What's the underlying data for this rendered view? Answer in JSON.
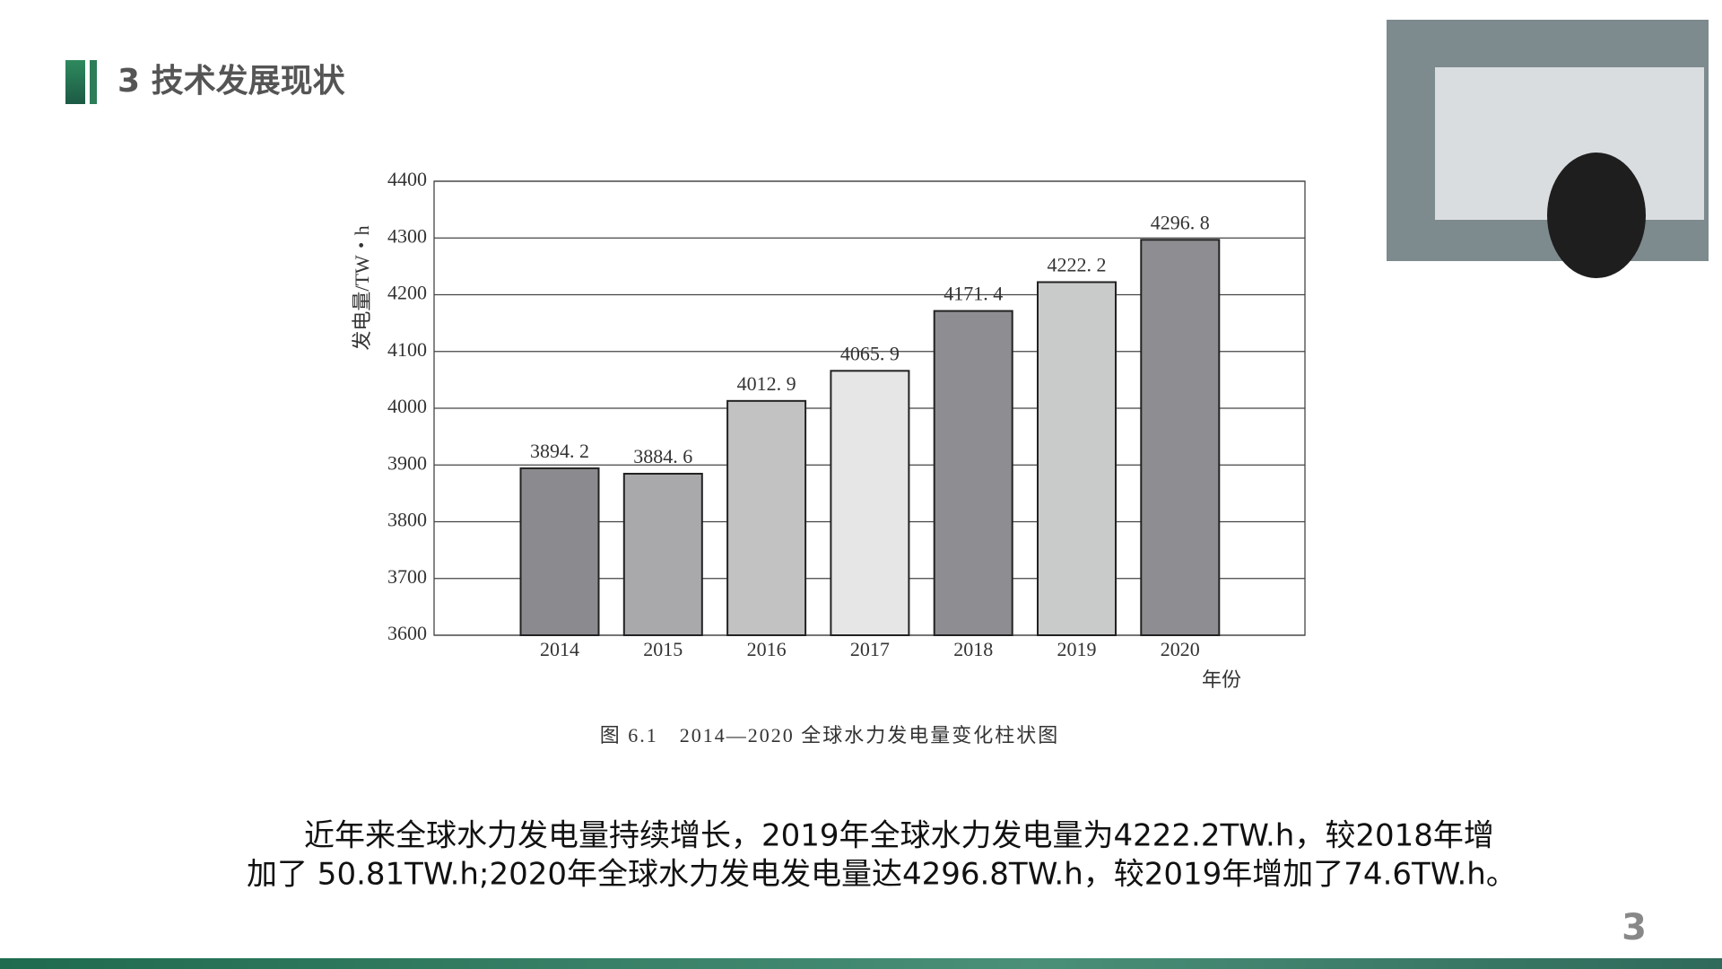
{
  "header": {
    "number_title": "3 技术发展现状"
  },
  "chart_data": {
    "type": "bar",
    "categories": [
      "2014",
      "2015",
      "2016",
      "2017",
      "2018",
      "2019",
      "2020"
    ],
    "values": [
      3894.2,
      3884.6,
      4012.9,
      4065.9,
      4171.4,
      4222.2,
      4296.8
    ],
    "value_labels": [
      "3894. 2",
      "3884. 6",
      "4012. 9",
      "4065. 9",
      "4171. 4",
      "4222. 2",
      "4296. 8"
    ],
    "colors": [
      "#8b8b8f",
      "#a9a9ab",
      "#c2c2c2",
      "#e6e6e6",
      "#8e8e92",
      "#c9caca",
      "#8e8e92"
    ],
    "y_label": "发电量/TW・h",
    "x_label": "年份",
    "caption": "图 6.1　2014—2020 全球水力发电量变化柱状图",
    "ylim": [
      3600,
      4400
    ],
    "yticks": [
      3600,
      3700,
      3800,
      3900,
      4000,
      4100,
      4200,
      4300,
      4400
    ],
    "grid": true
  },
  "paragraph": {
    "lines": [
      "近年来全球水力发电量持续增长，2019年全球水力发电量为4222.2TW.h，较2018年增",
      "加了 50.81TW.h;2020年全球水力发电发电量达4296.8TW.h，较2019年增加了74.6TW.h。"
    ]
  },
  "page_number": "3"
}
